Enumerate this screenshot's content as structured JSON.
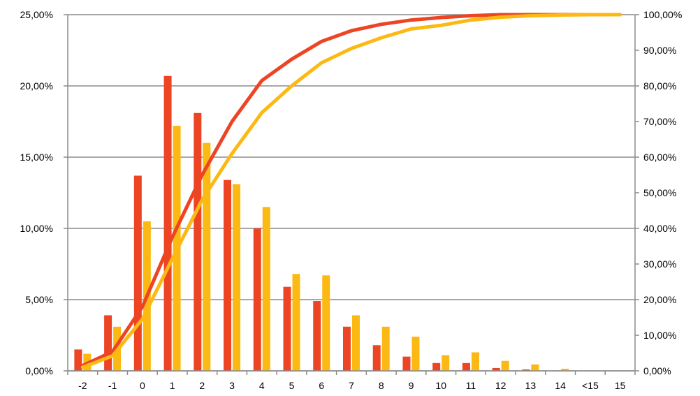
{
  "chart_data": {
    "type": "bar",
    "categories": [
      "-2",
      "-1",
      "0",
      "1",
      "2",
      "3",
      "4",
      "5",
      "6",
      "7",
      "8",
      "9",
      "10",
      "11",
      "12",
      "13",
      "14",
      "<15",
      "15"
    ],
    "y_left": {
      "ylim": [
        0,
        25
      ],
      "ticks": [
        0,
        5,
        10,
        15,
        20,
        25
      ],
      "tick_labels": [
        "0,00%",
        "5,00%",
        "10,00%",
        "15,00%",
        "20,00%",
        "25,00%"
      ]
    },
    "y_right": {
      "ylim": [
        0,
        100
      ],
      "ticks": [
        0,
        10,
        20,
        30,
        40,
        50,
        60,
        70,
        80,
        90,
        100
      ],
      "tick_labels": [
        "0,00%",
        "10,00%",
        "20,00%",
        "30,00%",
        "40,00%",
        "50,00%",
        "60,00%",
        "70,00%",
        "80,00%",
        "90,00%",
        "100,00%"
      ]
    },
    "grid": true,
    "legend": "none",
    "series": [
      {
        "kind": "bar",
        "axis": "left",
        "color": "#ed4524",
        "values": [
          1.5,
          3.9,
          13.7,
          20.7,
          18.1,
          13.4,
          10.0,
          5.9,
          4.9,
          3.1,
          1.8,
          1.0,
          0.55,
          0.55,
          0.2,
          0.1,
          0.0,
          0.0,
          0.0
        ]
      },
      {
        "kind": "bar",
        "axis": "left",
        "color": "#fdb913",
        "values": [
          1.2,
          3.1,
          10.5,
          17.2,
          16.0,
          13.1,
          11.5,
          6.8,
          6.7,
          3.9,
          3.1,
          2.4,
          1.1,
          1.3,
          0.7,
          0.45,
          0.15,
          0.0,
          0.0
        ]
      },
      {
        "kind": "line",
        "axis": "right",
        "color": "#ed4524",
        "values": [
          1.5,
          5.4,
          18.0,
          37.5,
          55.0,
          70.0,
          81.5,
          87.5,
          92.5,
          95.5,
          97.3,
          98.5,
          99.2,
          99.7,
          100.0,
          100.0,
          100.0,
          100.0,
          100.0
        ]
      },
      {
        "kind": "line",
        "axis": "right",
        "color": "#fdb913",
        "values": [
          1.0,
          4.2,
          14.5,
          31.5,
          48.0,
          61.0,
          72.5,
          80.0,
          86.5,
          90.5,
          93.5,
          96.0,
          97.0,
          98.5,
          99.3,
          99.7,
          99.9,
          100.0,
          100.0
        ]
      }
    ]
  }
}
